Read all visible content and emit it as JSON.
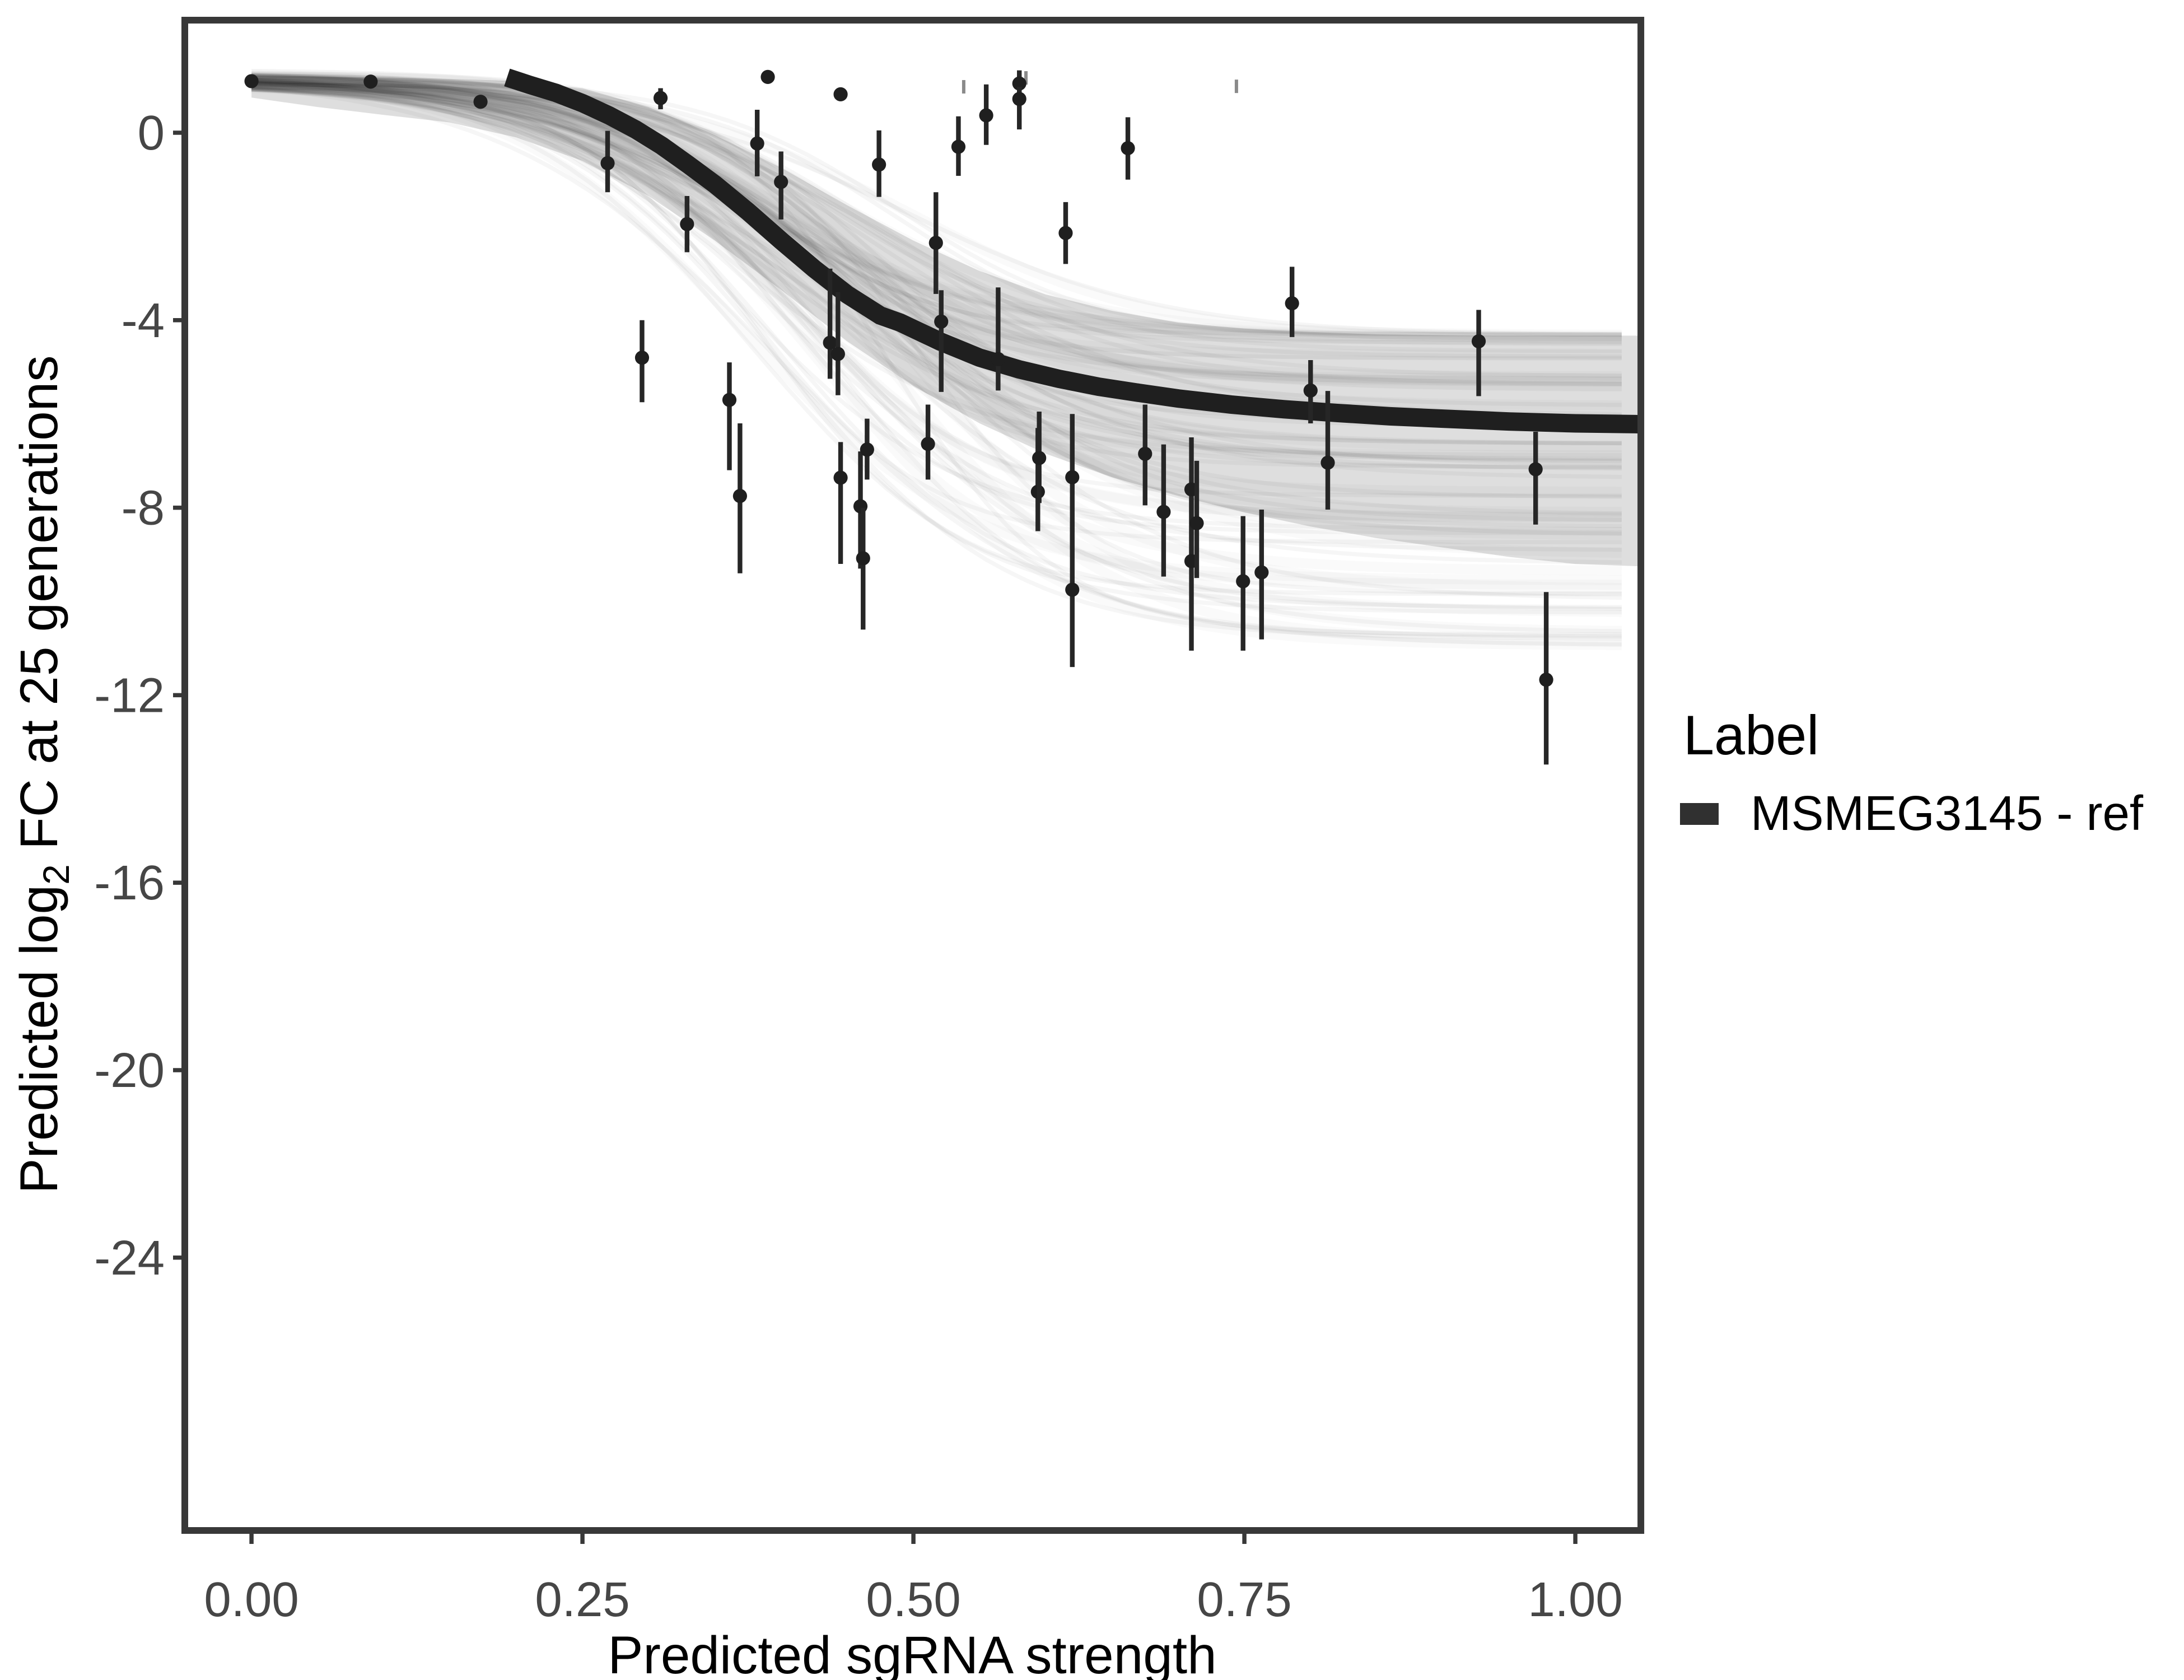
{
  "axes": {
    "x": {
      "label": "Predicted sgRNA strength",
      "ticks": [
        "0.00",
        "0.25",
        "0.50",
        "0.75",
        "1.00"
      ],
      "tick_values": [
        0,
        0.25,
        0.5,
        0.75,
        1.0
      ],
      "range": [
        -0.05,
        1.049
      ]
    },
    "y": {
      "label_parts": {
        "prefix": "Predicted  log",
        "sub": "2",
        "suffix": " FC at 25 generations"
      },
      "ticks": [
        "0",
        "-4",
        "-8",
        "-12",
        "-16",
        "-20",
        "-24"
      ],
      "tick_values": [
        0,
        -4,
        -8,
        -12,
        -16,
        -20,
        -24
      ],
      "range": [
        -29.8,
        2.4
      ]
    }
  },
  "legend": {
    "title": "Label",
    "items": [
      {
        "label": "MSMEG3145 - ref",
        "color": "#303030"
      }
    ]
  },
  "colors": {
    "panel_border": "#383838",
    "tick_label": "#464646",
    "point": "#1f1f1f",
    "error_bar": "#262626",
    "fit_curve": "#1f1f1f",
    "band": "#000000",
    "tiny_mark": "#8a8a8a"
  },
  "chart_data": {
    "type": "scatter",
    "title": "",
    "xlabel": "Predicted sgRNA strength",
    "ylabel": "Predicted log2 FC at 25 generations",
    "xlim": [
      -0.05,
      1.049
    ],
    "ylim": [
      -29.8,
      2.4
    ],
    "grid": false,
    "legend_position": "right",
    "series_name": "MSMEG3145 - ref",
    "points": [
      {
        "x": 0.0,
        "y": 1.1,
        "lo": 1.02,
        "hi": 1.18
      },
      {
        "x": 0.09,
        "y": 1.09,
        "lo": 1.0,
        "hi": 1.18
      },
      {
        "x": 0.173,
        "y": 0.66,
        "lo": 0.58,
        "hi": 0.74
      },
      {
        "x": 0.269,
        "y": -0.65,
        "lo": -1.27,
        "hi": 0.04
      },
      {
        "x": 0.309,
        "y": 0.74,
        "lo": 0.5,
        "hi": 0.95
      },
      {
        "x": 0.295,
        "y": -4.8,
        "lo": -5.75,
        "hi": -4.0
      },
      {
        "x": 0.329,
        "y": -1.95,
        "lo": -2.55,
        "hi": -1.35
      },
      {
        "x": 0.361,
        "y": -5.7,
        "lo": -7.2,
        "hi": -4.9
      },
      {
        "x": 0.369,
        "y": -7.75,
        "lo": -9.4,
        "hi": -6.2
      },
      {
        "x": 0.382,
        "y": -0.23,
        "lo": -0.93,
        "hi": 0.49
      },
      {
        "x": 0.39,
        "y": 1.19,
        "lo": 1.12,
        "hi": 1.26
      },
      {
        "x": 0.4,
        "y": -1.05,
        "lo": -1.85,
        "hi": -0.4
      },
      {
        "x": 0.437,
        "y": -4.48,
        "lo": -5.25,
        "hi": -2.9
      },
      {
        "x": 0.443,
        "y": -4.72,
        "lo": -5.6,
        "hi": -3.4
      },
      {
        "x": 0.445,
        "y": 0.82,
        "lo": 0.75,
        "hi": 0.89
      },
      {
        "x": 0.445,
        "y": -7.36,
        "lo": -9.2,
        "hi": -6.6
      },
      {
        "x": 0.46,
        "y": -7.97,
        "lo": -9.3,
        "hi": -6.8
      },
      {
        "x": 0.462,
        "y": -9.08,
        "lo": -10.6,
        "hi": -8.0
      },
      {
        "x": 0.465,
        "y": -6.76,
        "lo": -7.4,
        "hi": -6.1
      },
      {
        "x": 0.474,
        "y": -0.68,
        "lo": -1.37,
        "hi": 0.05
      },
      {
        "x": 0.511,
        "y": -6.64,
        "lo": -7.4,
        "hi": -5.8
      },
      {
        "x": 0.517,
        "y": -2.35,
        "lo": -3.44,
        "hi": -1.27
      },
      {
        "x": 0.521,
        "y": -4.03,
        "lo": -5.53,
        "hi": -3.36
      },
      {
        "x": 0.534,
        "y": -0.3,
        "lo": -0.92,
        "hi": 0.35
      },
      {
        "x": 0.555,
        "y": 0.37,
        "lo": -0.26,
        "hi": 1.03
      },
      {
        "x": 0.58,
        "y": 1.05,
        "lo": 0.78,
        "hi": 1.33
      },
      {
        "x": 0.58,
        "y": 0.72,
        "lo": 0.07,
        "hi": 0.98
      },
      {
        "x": 0.564,
        "y": -4.83,
        "lo": -5.5,
        "hi": -3.3
      },
      {
        "x": 0.594,
        "y": -7.66,
        "lo": -8.5,
        "hi": -6.3
      },
      {
        "x": 0.595,
        "y": -6.94,
        "lo": -7.9,
        "hi": -5.95
      },
      {
        "x": 0.615,
        "y": -2.14,
        "lo": -2.8,
        "hi": -1.48
      },
      {
        "x": 0.62,
        "y": -7.35,
        "lo": -8.9,
        "hi": -6.0
      },
      {
        "x": 0.62,
        "y": -9.75,
        "lo": -11.4,
        "hi": -8.3
      },
      {
        "x": 0.662,
        "y": -0.33,
        "lo": -1.0,
        "hi": 0.33
      },
      {
        "x": 0.675,
        "y": -6.85,
        "lo": -7.95,
        "hi": -5.8
      },
      {
        "x": 0.689,
        "y": -8.09,
        "lo": -9.47,
        "hi": -6.65
      },
      {
        "x": 0.71,
        "y": -7.61,
        "lo": -9.0,
        "hi": -6.5
      },
      {
        "x": 0.71,
        "y": -9.14,
        "lo": -11.05,
        "hi": -7.8
      },
      {
        "x": 0.714,
        "y": -8.33,
        "lo": -9.5,
        "hi": -7.0
      },
      {
        "x": 0.749,
        "y": -9.57,
        "lo": -11.05,
        "hi": -8.18
      },
      {
        "x": 0.763,
        "y": -9.38,
        "lo": -10.81,
        "hi": -8.04
      },
      {
        "x": 0.786,
        "y": -3.64,
        "lo": -4.36,
        "hi": -2.86
      },
      {
        "x": 0.8,
        "y": -5.5,
        "lo": -6.2,
        "hi": -4.85
      },
      {
        "x": 0.813,
        "y": -7.04,
        "lo": -8.04,
        "hi": -5.51
      },
      {
        "x": 0.927,
        "y": -4.45,
        "lo": -5.62,
        "hi": -3.78
      },
      {
        "x": 0.97,
        "y": -7.18,
        "lo": -8.36,
        "hi": -6.38
      },
      {
        "x": 0.978,
        "y": -11.67,
        "lo": -13.48,
        "hi": -9.8
      }
    ],
    "fit_curve": [
      [
        0.193,
        1.18
      ],
      [
        0.21,
        1.02
      ],
      [
        0.23,
        0.85
      ],
      [
        0.25,
        0.63
      ],
      [
        0.27,
        0.37
      ],
      [
        0.29,
        0.07
      ],
      [
        0.31,
        -0.28
      ],
      [
        0.33,
        -0.68
      ],
      [
        0.35,
        -1.1
      ],
      [
        0.375,
        -1.68
      ],
      [
        0.4,
        -2.3
      ],
      [
        0.425,
        -2.9
      ],
      [
        0.45,
        -3.45
      ],
      [
        0.475,
        -3.9
      ],
      [
        0.49,
        -4.05
      ],
      [
        0.52,
        -4.45
      ],
      [
        0.55,
        -4.8
      ],
      [
        0.58,
        -5.05
      ],
      [
        0.61,
        -5.25
      ],
      [
        0.64,
        -5.42
      ],
      [
        0.67,
        -5.55
      ],
      [
        0.7,
        -5.67
      ],
      [
        0.74,
        -5.8
      ],
      [
        0.78,
        -5.9
      ],
      [
        0.82,
        -5.98
      ],
      [
        0.86,
        -6.05
      ],
      [
        0.9,
        -6.1
      ],
      [
        0.95,
        -6.16
      ],
      [
        1.0,
        -6.2
      ],
      [
        1.049,
        -6.22
      ]
    ],
    "band_upper": [
      [
        0.0,
        1.22
      ],
      [
        0.05,
        1.2
      ],
      [
        0.1,
        1.18
      ],
      [
        0.15,
        1.15
      ],
      [
        0.2,
        1.1
      ],
      [
        0.25,
        0.95
      ],
      [
        0.3,
        0.55
      ],
      [
        0.35,
        -0.05
      ],
      [
        0.4,
        -0.75
      ],
      [
        0.45,
        -1.55
      ],
      [
        0.5,
        -2.3
      ],
      [
        0.55,
        -2.95
      ],
      [
        0.6,
        -3.45
      ],
      [
        0.65,
        -3.8
      ],
      [
        0.7,
        -4.05
      ],
      [
        0.75,
        -4.18
      ],
      [
        0.8,
        -4.25
      ],
      [
        0.85,
        -4.3
      ],
      [
        0.9,
        -4.32
      ],
      [
        0.95,
        -4.33
      ],
      [
        1.0,
        -4.33
      ],
      [
        1.049,
        -4.33
      ]
    ],
    "band_lower": [
      [
        0.0,
        0.75
      ],
      [
        0.05,
        0.55
      ],
      [
        0.1,
        0.38
      ],
      [
        0.15,
        0.22
      ],
      [
        0.2,
        -0.1
      ],
      [
        0.25,
        -0.6
      ],
      [
        0.3,
        -1.35
      ],
      [
        0.35,
        -2.3
      ],
      [
        0.4,
        -3.35
      ],
      [
        0.45,
        -4.45
      ],
      [
        0.5,
        -5.4
      ],
      [
        0.55,
        -6.2
      ],
      [
        0.6,
        -6.85
      ],
      [
        0.65,
        -7.35
      ],
      [
        0.7,
        -7.75
      ],
      [
        0.75,
        -8.1
      ],
      [
        0.8,
        -8.4
      ],
      [
        0.85,
        -8.65
      ],
      [
        0.9,
        -8.85
      ],
      [
        0.95,
        -9.05
      ],
      [
        1.0,
        -9.2
      ],
      [
        1.049,
        -9.25
      ]
    ],
    "draw_lines": {
      "count": 85,
      "seed": 7,
      "top_range": [
        1.0,
        1.3
      ],
      "bottom_range": [
        -11.0,
        -4.3
      ],
      "midpoint_range": [
        0.36,
        0.5
      ],
      "slope_range": [
        0.065,
        0.105
      ]
    },
    "tiny_marks": [
      [
        0.538,
        0.98
      ],
      [
        0.585,
        1.17
      ],
      [
        0.744,
        0.99
      ]
    ]
  }
}
